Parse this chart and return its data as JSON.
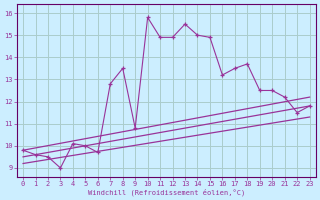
{
  "xlabel": "Windchill (Refroidissement éolien,°C)",
  "background_color": "#cceeff",
  "grid_color": "#aacccc",
  "line_color": "#993399",
  "x_values": [
    0,
    1,
    2,
    3,
    4,
    5,
    6,
    7,
    8,
    9,
    10,
    11,
    12,
    13,
    14,
    15,
    16,
    17,
    18,
    19,
    20,
    21,
    22,
    23
  ],
  "main_y": [
    9.8,
    9.6,
    9.5,
    9.0,
    10.1,
    10.0,
    9.7,
    12.8,
    13.5,
    10.8,
    15.8,
    14.9,
    14.9,
    15.5,
    15.0,
    14.9,
    13.2,
    13.5,
    13.7,
    12.5,
    12.5,
    12.2,
    11.5,
    11.8
  ],
  "reg_lines": [
    {
      "x0": 0,
      "y0": 9.8,
      "x1": 23,
      "y1": 12.2
    },
    {
      "x0": 0,
      "y0": 9.5,
      "x1": 23,
      "y1": 11.8
    },
    {
      "x0": 0,
      "y0": 9.2,
      "x1": 23,
      "y1": 11.3
    }
  ],
  "yticks": [
    9,
    10,
    11,
    12,
    13,
    14,
    15,
    16
  ],
  "ylim": [
    8.6,
    16.4
  ],
  "xlim": [
    -0.5,
    23.5
  ],
  "ylabel_fontsize": 5,
  "xlabel_fontsize": 5,
  "tick_fontsize": 5
}
